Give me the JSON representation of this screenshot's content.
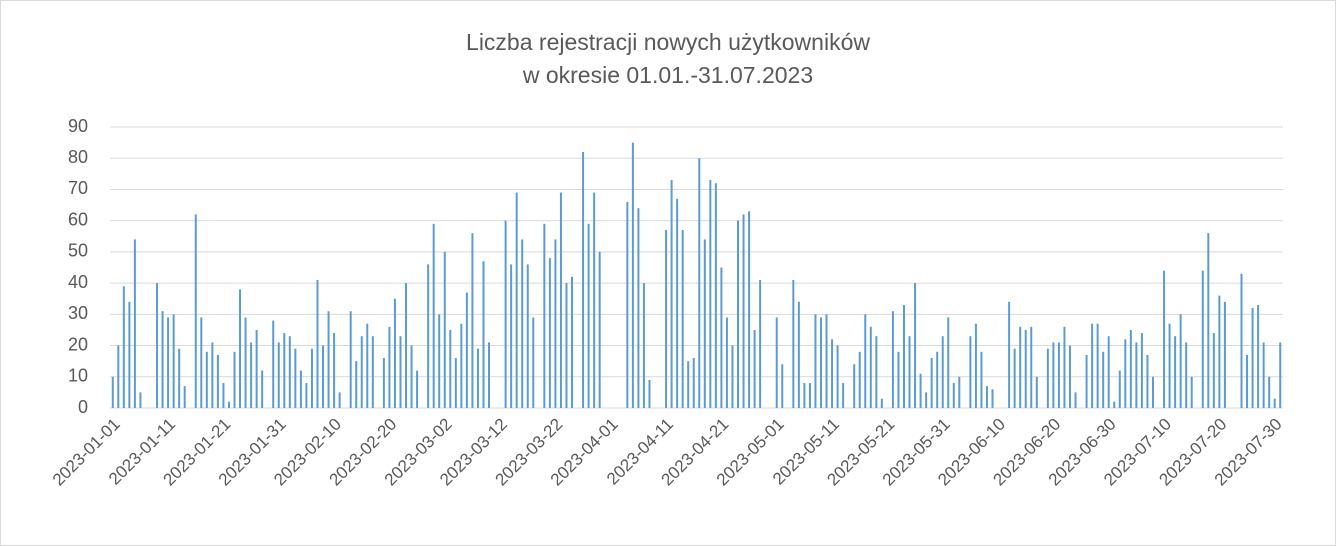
{
  "chart_data": {
    "type": "bar",
    "title": [
      "Liczba rejestracji nowych użytkowników",
      "w okresie 01.01.-31.07.2023"
    ],
    "categories": [
      "2023-01-01",
      null,
      null,
      null,
      null,
      null,
      null,
      null,
      null,
      null,
      "2023-01-11",
      null,
      null,
      null,
      null,
      null,
      null,
      null,
      null,
      null,
      "2023-01-21",
      null,
      null,
      null,
      null,
      null,
      null,
      null,
      null,
      null,
      "2023-01-31",
      null,
      null,
      null,
      null,
      null,
      null,
      null,
      null,
      null,
      "2023-02-10",
      null,
      null,
      null,
      null,
      null,
      null,
      null,
      null,
      null,
      "2023-02-20",
      null,
      null,
      null,
      null,
      null,
      null,
      null,
      null,
      null,
      "2023-03-02",
      null,
      null,
      null,
      null,
      null,
      null,
      null,
      null,
      null,
      "2023-03-12",
      null,
      null,
      null,
      null,
      null,
      null,
      null,
      null,
      null,
      "2023-03-22",
      null,
      null,
      null,
      null,
      null,
      null,
      null,
      null,
      null,
      "2023-04-01",
      null,
      null,
      null,
      null,
      null,
      null,
      null,
      null,
      null,
      "2023-04-11",
      null,
      null,
      null,
      null,
      null,
      null,
      null,
      null,
      null,
      "2023-04-21",
      null,
      null,
      null,
      null,
      null,
      null,
      null,
      null,
      null,
      "2023-05-01",
      null,
      null,
      null,
      null,
      null,
      null,
      null,
      null,
      null,
      "2023-05-11",
      null,
      null,
      null,
      null,
      null,
      null,
      null,
      null,
      null,
      "2023-05-21",
      null,
      null,
      null,
      null,
      null,
      null,
      null,
      null,
      null,
      "2023-05-31",
      null,
      null,
      null,
      null,
      null,
      null,
      null,
      null,
      null,
      "2023-06-10",
      null,
      null,
      null,
      null,
      null,
      null,
      null,
      null,
      null,
      "2023-06-20",
      null,
      null,
      null,
      null,
      null,
      null,
      null,
      null,
      null,
      "2023-06-30",
      null,
      null,
      null,
      null,
      null,
      null,
      null,
      null,
      null,
      "2023-07-10",
      null,
      null,
      null,
      null,
      null,
      null,
      null,
      null,
      null,
      "2023-07-20",
      null,
      null,
      null,
      null,
      null,
      null,
      null,
      null,
      null,
      "2023-07-30",
      null
    ],
    "values": [
      10,
      20,
      39,
      34,
      54,
      5,
      0,
      0,
      40,
      31,
      29,
      30,
      19,
      7,
      0,
      62,
      29,
      18,
      21,
      17,
      8,
      2,
      18,
      38,
      29,
      21,
      25,
      12,
      0,
      28,
      21,
      24,
      23,
      19,
      12,
      8,
      19,
      41,
      20,
      31,
      24,
      5,
      0,
      31,
      15,
      23,
      27,
      23,
      0,
      16,
      26,
      35,
      23,
      40,
      20,
      12,
      0,
      46,
      59,
      30,
      50,
      25,
      16,
      27,
      37,
      56,
      19,
      47,
      21,
      0,
      0,
      60,
      46,
      69,
      54,
      46,
      29,
      0,
      59,
      48,
      54,
      69,
      40,
      42,
      0,
      82,
      59,
      69,
      50,
      0,
      0,
      0,
      0,
      66,
      85,
      64,
      40,
      9,
      0,
      0,
      57,
      73,
      67,
      57,
      15,
      16,
      80,
      54,
      73,
      72,
      45,
      29,
      20,
      60,
      62,
      63,
      25,
      41,
      0,
      0,
      29,
      14,
      0,
      41,
      34,
      8,
      8,
      30,
      29,
      30,
      22,
      20,
      8,
      0,
      14,
      18,
      30,
      26,
      23,
      3,
      0,
      31,
      18,
      33,
      23,
      40,
      11,
      5,
      16,
      18,
      23,
      29,
      8,
      10,
      0,
      23,
      27,
      18,
      7,
      6,
      0,
      0,
      34,
      19,
      26,
      25,
      26,
      10,
      0,
      19,
      21,
      21,
      26,
      20,
      5,
      0,
      17,
      27,
      27,
      18,
      23,
      2,
      12,
      22,
      25,
      21,
      24,
      17,
      10,
      0,
      44,
      27,
      23,
      30,
      21,
      10,
      0,
      44,
      56,
      24,
      36,
      34,
      0,
      0,
      43,
      17,
      32,
      33,
      21,
      10,
      3,
      21
    ],
    "color": "#5b9bd5",
    "ylim": [
      0,
      90
    ],
    "yticks": [
      0,
      10,
      20,
      30,
      40,
      50,
      60,
      70,
      80,
      90
    ],
    "grid": true
  }
}
